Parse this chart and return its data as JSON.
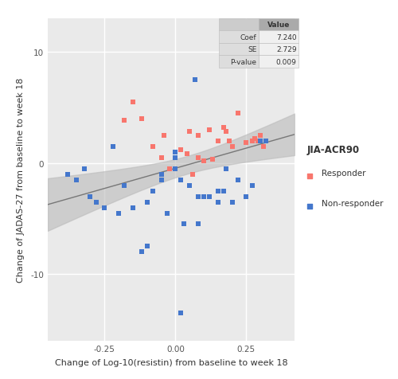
{
  "xlabel": "Change of Log-10(resistin) from baseline to week 18",
  "ylabel": "Change of JADAS-27 from baseline to week 18",
  "xlim": [
    -0.45,
    0.42
  ],
  "ylim": [
    -16,
    13
  ],
  "xticks": [
    -0.25,
    0.0,
    0.25
  ],
  "yticks": [
    -10,
    0,
    10
  ],
  "background_color": "#EAEAEA",
  "plot_bg_color": "#EAEAEA",
  "grid_color": "#FFFFFF",
  "coef": 7.24,
  "se": 2.729,
  "pvalue": 0.009,
  "regression_slope": 7.24,
  "regression_intercept": -0.48,
  "responder_x": [
    -0.18,
    -0.15,
    -0.12,
    -0.08,
    -0.05,
    -0.04,
    -0.02,
    0.0,
    0.02,
    0.04,
    0.05,
    0.06,
    0.08,
    0.08,
    0.1,
    0.12,
    0.13,
    0.15,
    0.17,
    0.18,
    0.19,
    0.2,
    0.22,
    0.25,
    0.27,
    0.28,
    0.29,
    0.3,
    0.31,
    0.32
  ],
  "responder_y": [
    3.8,
    5.5,
    4.0,
    1.5,
    0.5,
    2.5,
    -0.5,
    1.0,
    1.2,
    0.8,
    2.8,
    -1.0,
    0.5,
    2.5,
    0.2,
    3.0,
    0.3,
    2.0,
    3.2,
    2.8,
    2.0,
    1.5,
    4.5,
    1.8,
    2.0,
    2.2,
    2.0,
    2.5,
    1.5,
    2.0
  ],
  "nonresponder_x": [
    -0.38,
    -0.35,
    -0.32,
    -0.3,
    -0.28,
    -0.25,
    -0.22,
    -0.2,
    -0.18,
    -0.15,
    -0.12,
    -0.1,
    -0.08,
    -0.05,
    -0.03,
    0.0,
    0.0,
    0.02,
    0.03,
    0.05,
    0.07,
    0.08,
    0.08,
    0.1,
    0.12,
    0.15,
    0.15,
    0.17,
    0.18,
    0.2,
    0.22,
    0.22,
    0.25,
    0.27,
    0.3,
    0.32,
    -0.05,
    -0.1,
    0.0,
    0.02
  ],
  "nonresponder_y": [
    -1.0,
    -1.5,
    -0.5,
    -3.0,
    -3.5,
    -4.0,
    1.5,
    -4.5,
    -2.0,
    -4.0,
    -8.0,
    -3.5,
    -2.5,
    -1.0,
    -4.5,
    -0.5,
    0.5,
    -1.5,
    -5.5,
    -2.0,
    7.5,
    -3.0,
    -5.5,
    -3.0,
    -3.0,
    -3.5,
    -2.5,
    -2.5,
    -0.5,
    -3.5,
    -1.5,
    -1.5,
    -3.0,
    -2.0,
    2.0,
    2.0,
    -1.5,
    -7.5,
    1.0,
    -13.5
  ],
  "responder_color": "#F8766D",
  "nonresponder_color": "#4477CC",
  "line_color": "#777777",
  "ci_color": "#BBBBBB",
  "legend_title": "JIA-ACR90",
  "legend_responder": "Responder",
  "legend_nonresponder": "Non-responder",
  "table_rows": [
    [
      "Coef",
      "7.240"
    ],
    [
      "SE",
      "2.729"
    ],
    [
      "P-value",
      "0.009"
    ]
  ],
  "table_header": "Value",
  "marker_size": 18
}
